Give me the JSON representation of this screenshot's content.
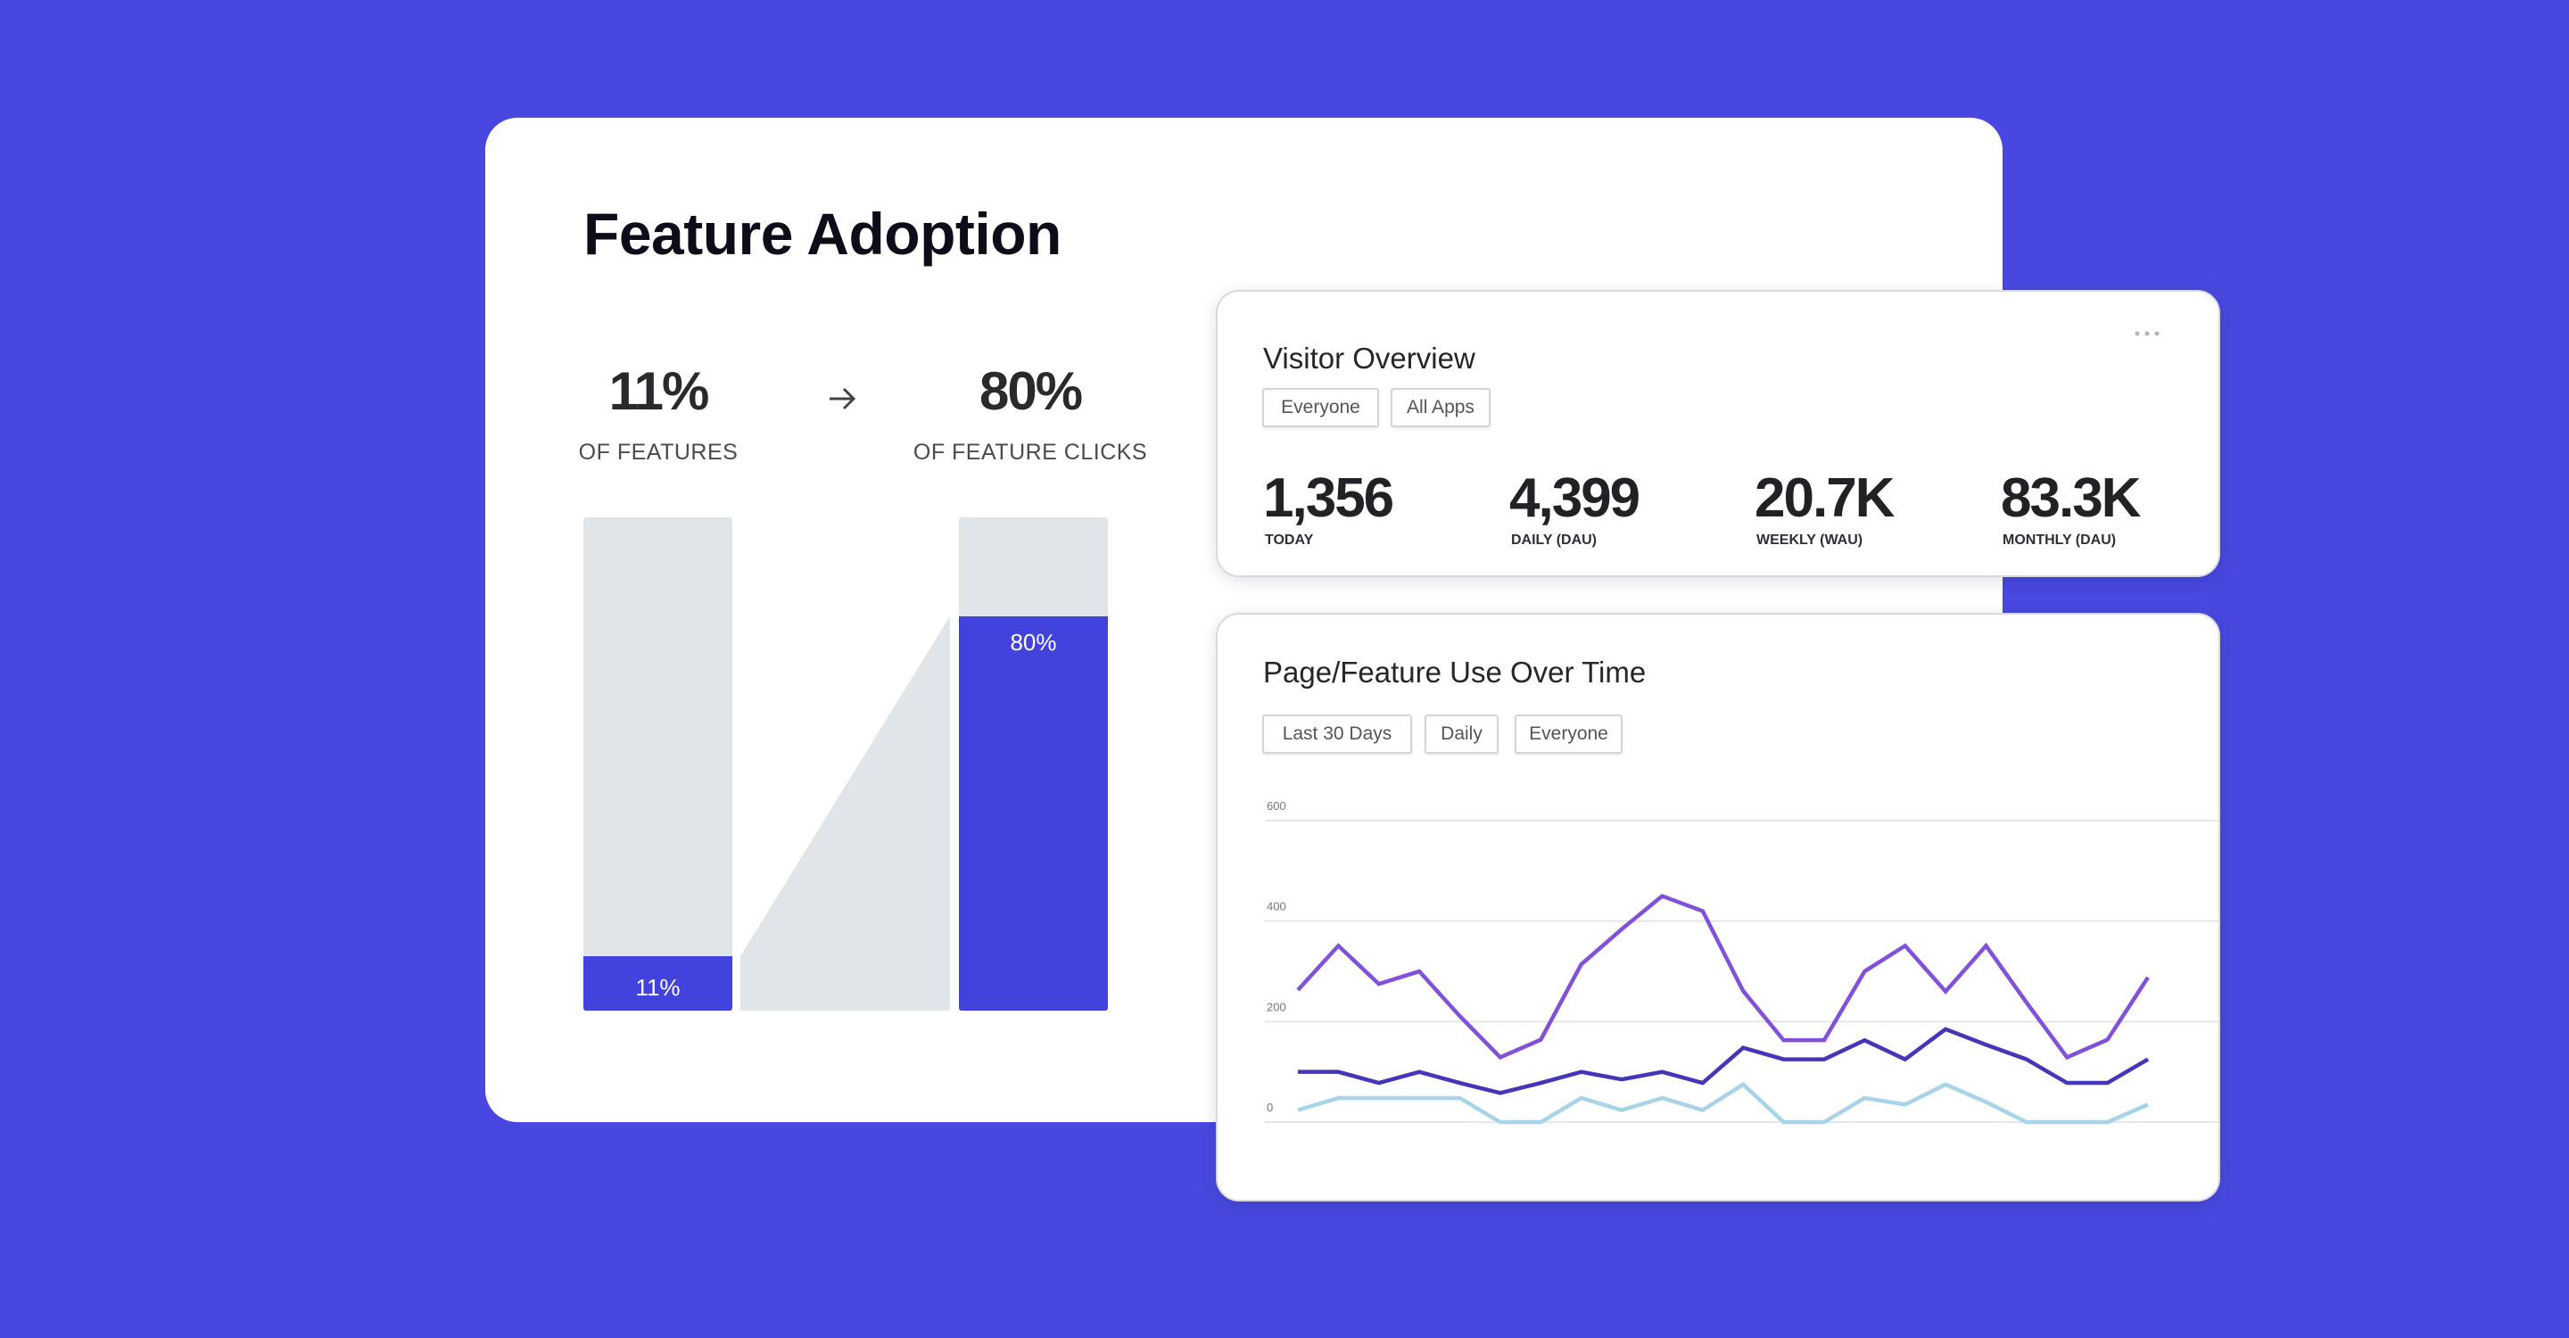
{
  "feature_adoption": {
    "title": "Feature Adoption",
    "left_stat": {
      "value": "11%",
      "label": "OF FEATURES",
      "bar_label": "11%",
      "fill_percent": 11
    },
    "right_stat": {
      "value": "80%",
      "label": "OF FEATURE CLICKS",
      "bar_label": "80%",
      "fill_percent": 80
    },
    "arrow_icon": "arrow-right-icon",
    "colors": {
      "fill": "#4242dd",
      "track": "#dfe5e9"
    }
  },
  "visitor_overview": {
    "title": "Visitor Overview",
    "filters": [
      "Everyone",
      "All Apps"
    ],
    "menu_icon": "more-horizontal-icon",
    "metrics": [
      {
        "value": "1,356",
        "label": "TODAY"
      },
      {
        "value": "4,399",
        "label": "DAILY (DAU)"
      },
      {
        "value": "20.7K",
        "label": "WEEKLY (WAU)"
      },
      {
        "value": "83.3K",
        "label": "MONTHLY (DAU)"
      }
    ]
  },
  "usage_over_time": {
    "title": "Page/Feature Use Over Time",
    "filters": [
      "Last 30 Days",
      "Daily",
      "Everyone"
    ]
  },
  "chart_data": {
    "type": "line",
    "ylim": [
      0,
      600
    ],
    "yticks": [
      "600",
      "400",
      "200",
      "0"
    ],
    "grid": true,
    "series": [
      {
        "color": "#8152d9",
        "values": [
          263,
          351,
          275,
          300,
          211,
          129,
          164,
          314,
          384,
          450,
          420,
          261,
          163,
          163,
          300,
          351,
          260,
          351,
          238,
          129,
          164,
          288
        ]
      },
      {
        "color": "#4535b8",
        "values": [
          100,
          100,
          78,
          100,
          78,
          58,
          78,
          100,
          85,
          100,
          78,
          148,
          125,
          125,
          163,
          125,
          185,
          154,
          125,
          78,
          78,
          125
        ]
      },
      {
        "color": "#a8d4ea",
        "values": [
          24,
          48,
          48,
          48,
          48,
          0,
          0,
          48,
          24,
          48,
          24,
          75,
          0,
          0,
          48,
          35,
          75,
          40,
          0,
          0,
          0,
          35
        ]
      }
    ]
  }
}
